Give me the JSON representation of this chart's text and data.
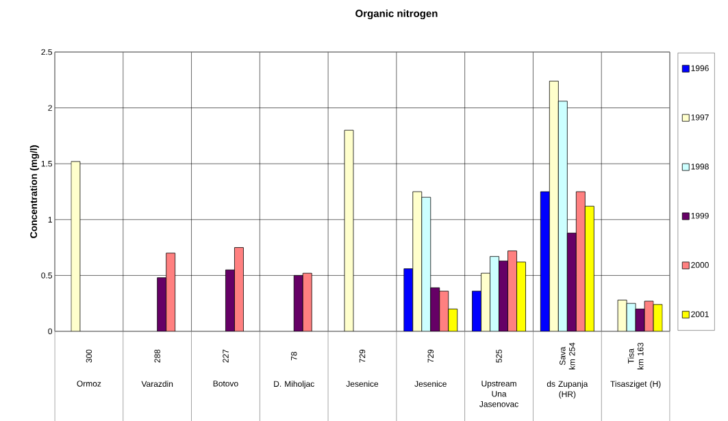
{
  "chart_data": {
    "type": "bar",
    "title": "Organic nitrogen",
    "ylabel": "Concentration (mg/l)",
    "categories": [
      "Ormoz",
      "Varazdin",
      "Botovo",
      "D. Miholjac",
      "Jesenice",
      "Jesenice",
      "Upstream Una Jasenovac",
      "ds Zupanja (HR)",
      "Tisasziget (H)"
    ],
    "annotations": [
      "300",
      "288",
      "227",
      "78",
      "729",
      "729",
      "525",
      "Sava km 254",
      "Tisa km 163"
    ],
    "series": [
      {
        "name": "1996",
        "color": "#0000ff",
        "values": [
          null,
          null,
          null,
          null,
          null,
          0.56,
          0.36,
          1.25,
          null
        ]
      },
      {
        "name": "1997",
        "color": "#ffffcc",
        "values": [
          1.52,
          null,
          null,
          null,
          1.8,
          1.25,
          0.52,
          2.24,
          0.28
        ]
      },
      {
        "name": "1998",
        "color": "#ccffff",
        "values": [
          null,
          null,
          null,
          null,
          null,
          1.2,
          0.67,
          2.06,
          0.25
        ]
      },
      {
        "name": "1999",
        "color": "#660066",
        "values": [
          null,
          0.48,
          0.55,
          0.5,
          null,
          0.39,
          0.63,
          0.88,
          0.2
        ]
      },
      {
        "name": "2000",
        "color": "#ff8080",
        "values": [
          null,
          0.7,
          0.75,
          0.52,
          null,
          0.36,
          0.72,
          1.25,
          0.27
        ]
      },
      {
        "name": "2001",
        "color": "#ffff00",
        "values": [
          null,
          null,
          null,
          null,
          null,
          0.2,
          0.62,
          1.12,
          0.24
        ]
      }
    ],
    "ylim": [
      0,
      2.5
    ],
    "yticks": [
      0,
      0.5,
      1,
      1.5,
      2,
      2.5
    ],
    "grid": true,
    "legend": "right"
  }
}
